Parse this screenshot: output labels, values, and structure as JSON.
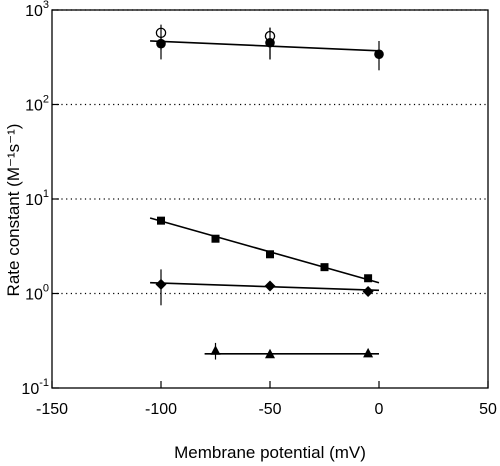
{
  "chart_data": {
    "type": "scatter",
    "xlabel": "Membrane potential  (mV)",
    "ylabel": "Rate constant  (M⁻¹s⁻¹)",
    "x_scale": "linear",
    "y_scale": "log",
    "xlim": [
      -150,
      50
    ],
    "ylim": [
      0.1,
      1000
    ],
    "x_ticks": [
      {
        "value": -150,
        "label": "-150"
      },
      {
        "value": -100,
        "label": "-100"
      },
      {
        "value": -50,
        "label": "-50"
      },
      {
        "value": 0,
        "label": "0"
      },
      {
        "value": 50,
        "label": "50"
      }
    ],
    "y_ticks": [
      {
        "value": 0.1,
        "base": "10",
        "exp": "-1"
      },
      {
        "value": 1,
        "base": "10",
        "exp": "0"
      },
      {
        "value": 10,
        "base": "10",
        "exp": "1"
      },
      {
        "value": 100,
        "base": "10",
        "exp": "2"
      },
      {
        "value": 1000,
        "base": "10",
        "exp": "3"
      }
    ],
    "grid": "horizontal dotted at decades",
    "series": [
      {
        "marker": "open-circle",
        "points": [
          {
            "x": -100,
            "y": 520,
            "err": [
              380,
              700
            ]
          },
          {
            "x": -50,
            "y": 480,
            "err": [
              300,
              650
            ]
          }
        ]
      },
      {
        "marker": "filled-circle",
        "points": [
          {
            "x": -100,
            "y": 440,
            "err": [
              300,
              640
            ]
          },
          {
            "x": -50,
            "y": 450,
            "err": [
              300,
              650
            ]
          },
          {
            "x": 0,
            "y": 340,
            "err": [
              230,
              470
            ]
          }
        ],
        "fit": [
          {
            "x": -105,
            "y": 470
          },
          {
            "x": 0,
            "y": 370
          }
        ]
      },
      {
        "marker": "filled-square",
        "points": [
          {
            "x": -100,
            "y": 5.9
          },
          {
            "x": -75,
            "y": 3.8
          },
          {
            "x": -50,
            "y": 2.6
          },
          {
            "x": -25,
            "y": 1.9
          },
          {
            "x": -5,
            "y": 1.45
          }
        ],
        "fit": [
          {
            "x": -105,
            "y": 6.3
          },
          {
            "x": 0,
            "y": 1.3
          }
        ]
      },
      {
        "marker": "filled-diamond",
        "points": [
          {
            "x": -100,
            "y": 1.25,
            "err": [
              0.75,
              1.8
            ]
          },
          {
            "x": -50,
            "y": 1.2
          },
          {
            "x": -5,
            "y": 1.05
          }
        ],
        "fit": [
          {
            "x": -105,
            "y": 1.3
          },
          {
            "x": 0,
            "y": 1.08
          }
        ]
      },
      {
        "marker": "filled-triangle",
        "points": [
          {
            "x": -75,
            "y": 0.245,
            "err": [
              0.2,
              0.3
            ]
          },
          {
            "x": -50,
            "y": 0.225
          },
          {
            "x": -5,
            "y": 0.23
          }
        ],
        "fit": [
          {
            "x": -80,
            "y": 0.23
          },
          {
            "x": 0,
            "y": 0.23
          }
        ]
      }
    ]
  }
}
